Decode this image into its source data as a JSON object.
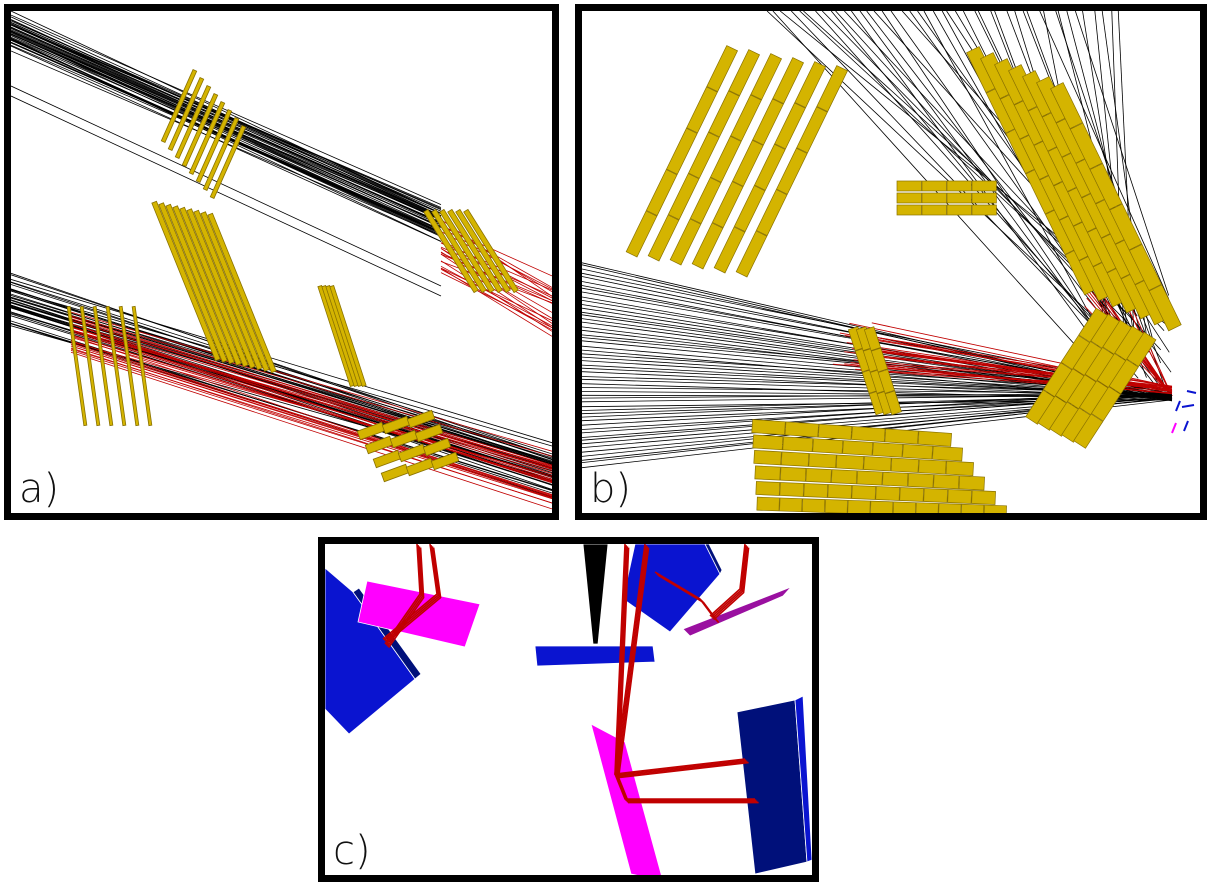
{
  "panels": [
    {
      "id": "a",
      "label": "a)"
    },
    {
      "id": "b",
      "label": "b)"
    },
    {
      "id": "c",
      "label": "c)"
    }
  ],
  "colors": {
    "frame": "#000000",
    "track_black": "#000000",
    "track_red": "#c00000",
    "module_gold": "#d4b400",
    "module_gold_dark": "#8a7200",
    "module_blue": "#0a14d0",
    "module_navy": "#00107a",
    "module_magenta": "#ff00ff",
    "module_purple": "#9a10a0"
  }
}
